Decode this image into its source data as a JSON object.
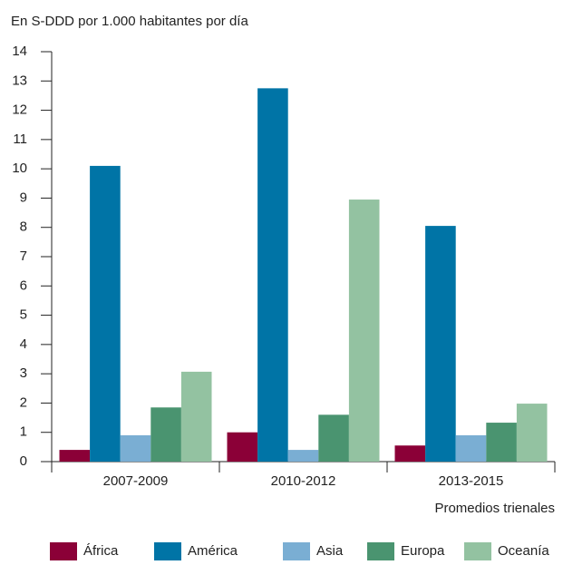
{
  "chart_data": {
    "type": "bar",
    "title": "En S-DDD por 1.000 habitantes por día",
    "x_label": "Promedios trienales",
    "categories": [
      "2007-2009",
      "2010-2012",
      "2013-2015"
    ],
    "series": [
      {
        "name": "África",
        "color": "#8b0037",
        "values": [
          0.4,
          1.0,
          0.55
        ]
      },
      {
        "name": "América",
        "color": "#0074a6",
        "values": [
          10.1,
          12.75,
          8.05
        ]
      },
      {
        "name": "Asia",
        "color": "#7aaed3",
        "values": [
          0.9,
          0.4,
          0.9
        ]
      },
      {
        "name": "Europa",
        "color": "#4a9470",
        "values": [
          1.85,
          1.6,
          1.33
        ]
      },
      {
        "name": "Oceanía",
        "color": "#93c2a1",
        "values": [
          3.07,
          8.95,
          1.98
        ]
      }
    ],
    "ylim": [
      0,
      14
    ],
    "yticks": [
      0,
      1,
      2,
      3,
      4,
      5,
      6,
      7,
      8,
      9,
      10,
      11,
      12,
      13,
      14
    ],
    "legend": "bottom"
  }
}
